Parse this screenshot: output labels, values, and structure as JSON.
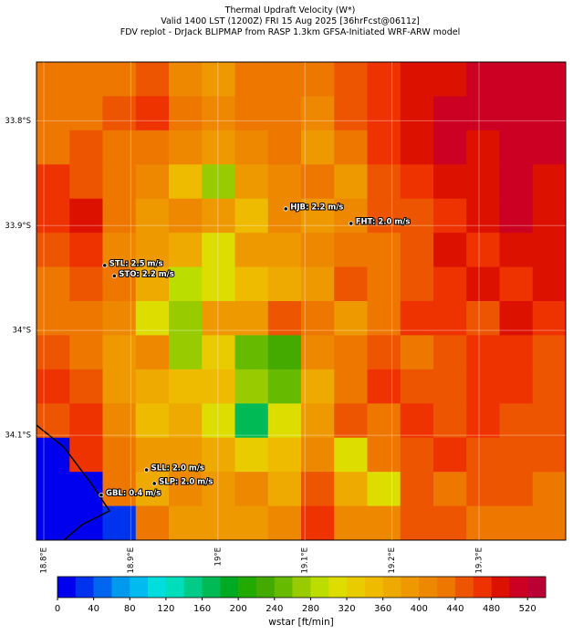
{
  "chart_data": {
    "type": "heatmap",
    "title": "Thermal Updraft Velocity (W*)",
    "subtitles": [
      "Valid 1400 LST (1200Z) FRI 15 Aug 2025 [36hrFcst@0611z]",
      "FDV replot - DrJack BLIPMAP from RASP 1.3km GFSA-Initiated WRF-ARW model"
    ],
    "xlim": [
      18.7916,
      19.3996
    ],
    "ylim": [
      -34.2,
      -33.744
    ],
    "xticks": [
      {
        "value": 18.8,
        "label": "18.8°E"
      },
      {
        "value": 18.9,
        "label": "18.9°E"
      },
      {
        "value": 19.0,
        "label": "19°E"
      },
      {
        "value": 19.1,
        "label": "19.1°E"
      },
      {
        "value": 19.2,
        "label": "19.2°E"
      },
      {
        "value": 19.3,
        "label": "19.3°E"
      }
    ],
    "yticks": [
      {
        "value": -33.8,
        "label": "33.8°S"
      },
      {
        "value": -33.9,
        "label": "33.9°S"
      },
      {
        "value": -34.0,
        "label": "34°S"
      },
      {
        "value": -34.1,
        "label": "34.1°S"
      }
    ],
    "z": [
      [
        420,
        420,
        420,
        440,
        400,
        380,
        420,
        420,
        420,
        440,
        460,
        480,
        480,
        500,
        500,
        500
      ],
      [
        420,
        420,
        440,
        460,
        420,
        400,
        420,
        420,
        400,
        440,
        460,
        480,
        500,
        500,
        500,
        500
      ],
      [
        420,
        440,
        420,
        420,
        400,
        380,
        400,
        420,
        380,
        420,
        460,
        480,
        500,
        480,
        500,
        500
      ],
      [
        460,
        440,
        420,
        400,
        340,
        260,
        380,
        400,
        420,
        380,
        440,
        460,
        480,
        480,
        500,
        480
      ],
      [
        460,
        480,
        420,
        380,
        400,
        380,
        340,
        400,
        380,
        400,
        440,
        440,
        460,
        480,
        500,
        480
      ],
      [
        440,
        460,
        400,
        380,
        360,
        300,
        380,
        380,
        400,
        420,
        420,
        440,
        480,
        460,
        480,
        480
      ],
      [
        420,
        440,
        420,
        360,
        280,
        300,
        340,
        360,
        380,
        440,
        420,
        440,
        460,
        480,
        460,
        480
      ],
      [
        420,
        420,
        400,
        300,
        260,
        380,
        380,
        440,
        420,
        380,
        420,
        460,
        460,
        440,
        480,
        460
      ],
      [
        440,
        420,
        380,
        400,
        260,
        320,
        240,
        220,
        400,
        420,
        440,
        420,
        440,
        460,
        460,
        440
      ],
      [
        460,
        440,
        380,
        360,
        340,
        340,
        260,
        240,
        360,
        420,
        460,
        440,
        440,
        460,
        460,
        440
      ],
      [
        440,
        460,
        400,
        340,
        360,
        300,
        160,
        300,
        380,
        440,
        420,
        460,
        440,
        460,
        440,
        440
      ],
      [
        10,
        460,
        420,
        380,
        380,
        360,
        320,
        340,
        400,
        300,
        420,
        440,
        460,
        440,
        440,
        440
      ],
      [
        10,
        10,
        420,
        360,
        400,
        380,
        400,
        360,
        440,
        360,
        300,
        440,
        420,
        440,
        440,
        420
      ],
      [
        10,
        10,
        20,
        420,
        380,
        380,
        380,
        400,
        460,
        400,
        400,
        440,
        440,
        420,
        420,
        420
      ]
    ],
    "stations": [
      {
        "label": "HJB: 2.2 m/s",
        "lon": 19.078,
        "lat": -33.884
      },
      {
        "label": "FHT: 2.0 m/s",
        "lon": 19.153,
        "lat": -33.898
      },
      {
        "label": "STL: 2.5 m/s",
        "lon": 18.87,
        "lat": -33.938
      },
      {
        "label": "STO: 2.2 m/s",
        "lon": 18.881,
        "lat": -33.948
      },
      {
        "label": "SLL: 2.0 m/s",
        "lon": 18.918,
        "lat": -34.133
      },
      {
        "label": "SLP: 2.0 m/s",
        "lon": 18.927,
        "lat": -34.146
      },
      {
        "label": "GBL: 0.4 m/s",
        "lon": 18.866,
        "lat": -34.157
      }
    ],
    "colorbar": {
      "label": "wstar [ft/min]",
      "lim": [
        0,
        540
      ],
      "ticks": [
        0,
        40,
        80,
        120,
        160,
        200,
        240,
        280,
        320,
        360,
        400,
        440,
        480,
        520
      ],
      "colors": [
        "#0000ee",
        "#0033ee",
        "#0066ee",
        "#0099ee",
        "#00bbee",
        "#00dddd",
        "#00ddbb",
        "#00cc88",
        "#00bb55",
        "#00aa22",
        "#22aa00",
        "#44aa00",
        "#66bb00",
        "#99cc00",
        "#bbdd00",
        "#dddd00",
        "#e8cc00",
        "#eebb00",
        "#eeaa00",
        "#ee9900",
        "#ee8800",
        "#ee7700",
        "#ee5500",
        "#ee3300",
        "#dd1100",
        "#cc0022",
        "#bb0033"
      ]
    }
  }
}
